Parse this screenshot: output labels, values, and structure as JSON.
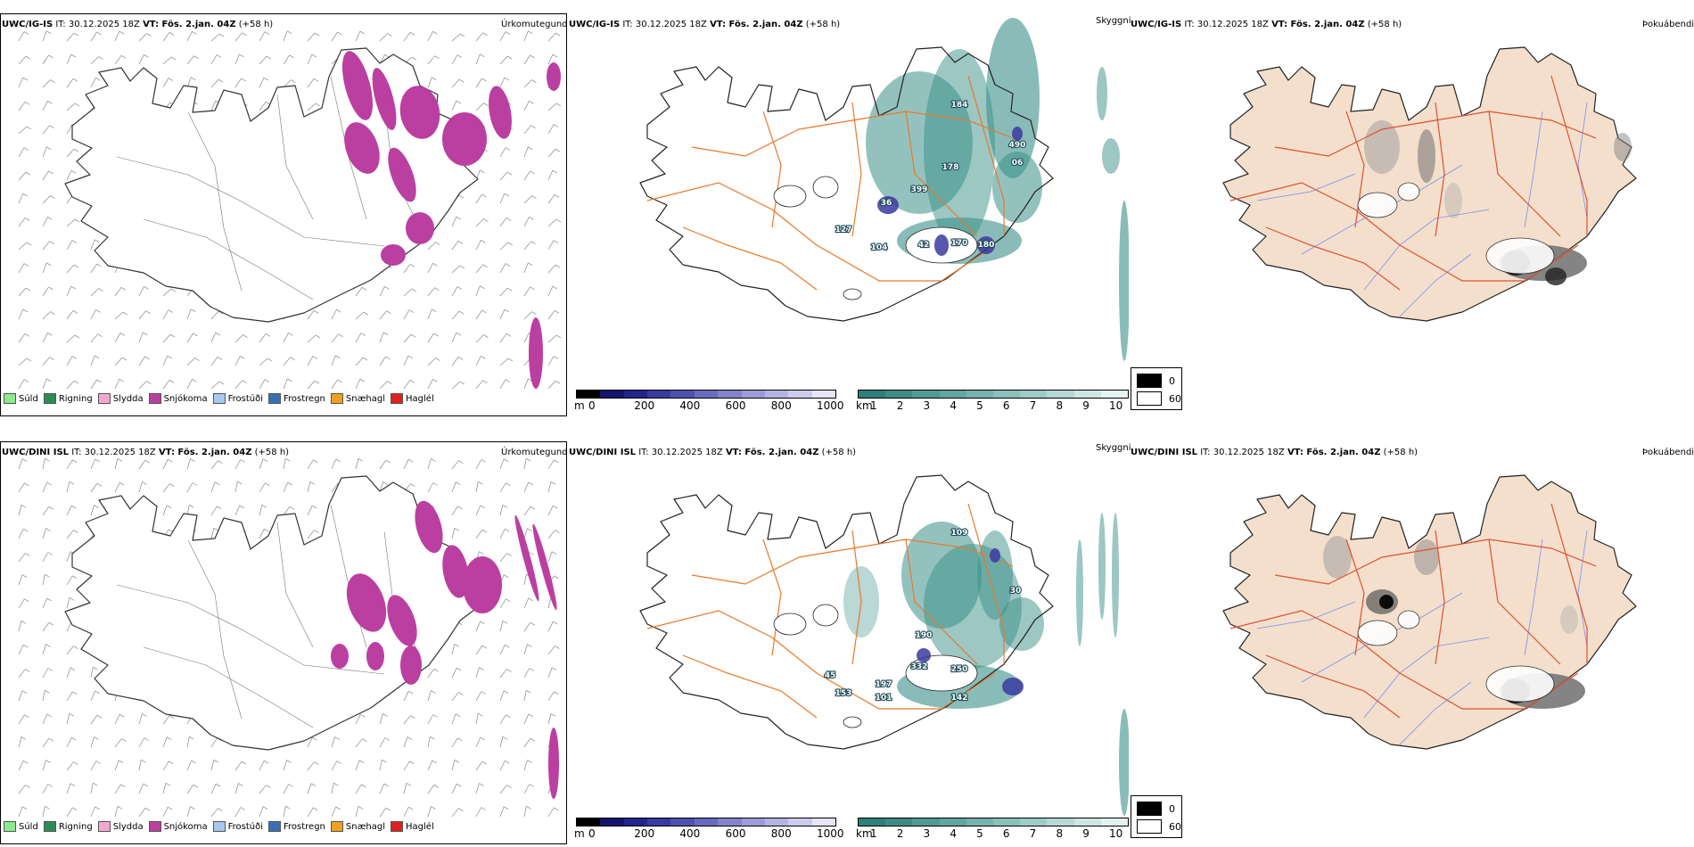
{
  "rows": [
    {
      "model": "UWC/IG-IS",
      "it_label": "IT: 30.12.2025 18Z",
      "vt_label": "VT: Fös. 2.jan. 04Z",
      "lead": "(+58 h)",
      "cloud_labels": [
        "184",
        "490",
        "06",
        "178",
        "399",
        "36",
        "127",
        "104",
        "42",
        "170",
        "180"
      ]
    },
    {
      "model": "UWC/DINI ISL",
      "it_label": "IT: 30.12.2025 18Z",
      "vt_label": "VT: Fös. 2.jan. 04Z",
      "lead": "(+58 h)",
      "cloud_labels": [
        "109",
        "30",
        "190",
        "332",
        "197",
        "45",
        "153",
        "101",
        "250",
        "142"
      ]
    }
  ],
  "panel_titles": {
    "precip_type": "Úrkomutegund",
    "cloud_base": "Skyggni",
    "fog": "Þokuábendi"
  },
  "precip_legend": [
    {
      "label": "Súld",
      "color": "#8ee88e"
    },
    {
      "label": "Rigning",
      "color": "#2e8b57"
    },
    {
      "label": "Slydda",
      "color": "#f2a8d0"
    },
    {
      "label": "Snjókoma",
      "color": "#bb3fa0"
    },
    {
      "label": "Frostúði",
      "color": "#a8c8f0"
    },
    {
      "label": "Frostregn",
      "color": "#3a6fb8"
    },
    {
      "label": "Snæhagl",
      "color": "#f0a020"
    },
    {
      "label": "Haglél",
      "color": "#e02020"
    }
  ],
  "height_colorbar": {
    "unit": "m",
    "ticks": [
      "0",
      "200",
      "400",
      "600",
      "800",
      "1000"
    ],
    "colors": [
      "#000000",
      "#14146e",
      "#24248e",
      "#3a3aa0",
      "#5050b0",
      "#6a6ac0",
      "#8484cc",
      "#9c9cd8",
      "#b4b4e4",
      "#ccccee",
      "#e6e6f6"
    ]
  },
  "visibility_colorbar": {
    "unit": "km",
    "ticks": [
      "1",
      "2",
      "3",
      "4",
      "5",
      "6",
      "7",
      "8",
      "9",
      "10"
    ],
    "colors": [
      "#2f807a",
      "#3f8c86",
      "#519a94",
      "#63a6a0",
      "#77b2ad",
      "#8bbfba",
      "#a0ccc8",
      "#b6d9d6",
      "#cce6e4",
      "#e4f2f1"
    ]
  },
  "fog_legend": [
    {
      "label": "0",
      "color": "#000000"
    },
    {
      "label": "60",
      "color": "#ffffff"
    }
  ],
  "colors": {
    "snow": "#bb3fa0",
    "road": "#e8792a",
    "land_fog": "#f3dfcc",
    "fog_road": "#e05030",
    "river": "#7b8ff0",
    "visibility": "#3a8f88",
    "coast": "#222222"
  }
}
